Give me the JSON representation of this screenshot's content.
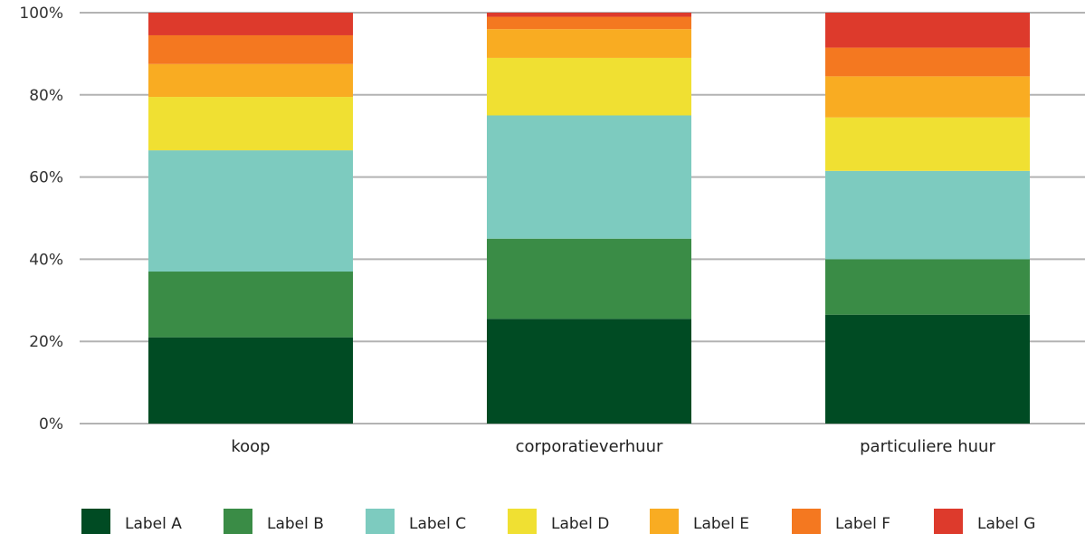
{
  "chart_data": {
    "type": "bar",
    "stacked": true,
    "normalized": true,
    "categories": [
      "koop",
      "corporatieverhuur",
      "particuliere huur"
    ],
    "series": [
      {
        "name": "Label A",
        "color": "#004b23",
        "values": [
          21,
          25.5,
          26.5
        ]
      },
      {
        "name": "Label B",
        "color": "#3a8c46",
        "values": [
          16,
          19.5,
          13.5
        ]
      },
      {
        "name": "Label C",
        "color": "#7dcbbf",
        "values": [
          29.5,
          30,
          21.5
        ]
      },
      {
        "name": "Label D",
        "color": "#f0e032",
        "values": [
          13,
          14,
          13
        ]
      },
      {
        "name": "Label E",
        "color": "#f9ac22",
        "values": [
          8,
          7,
          10
        ]
      },
      {
        "name": "Label F",
        "color": "#f47820",
        "values": [
          7,
          3,
          7
        ]
      },
      {
        "name": "Label G",
        "color": "#dd3a2c",
        "values": [
          5.5,
          1,
          8.5
        ]
      }
    ],
    "yticks": [
      "0%",
      "20%",
      "40%",
      "60%",
      "80%",
      "100%"
    ],
    "ylim": [
      0,
      100
    ],
    "grid": "horizontal",
    "legend": "bottom",
    "title": "",
    "xlabel": "",
    "ylabel": ""
  }
}
